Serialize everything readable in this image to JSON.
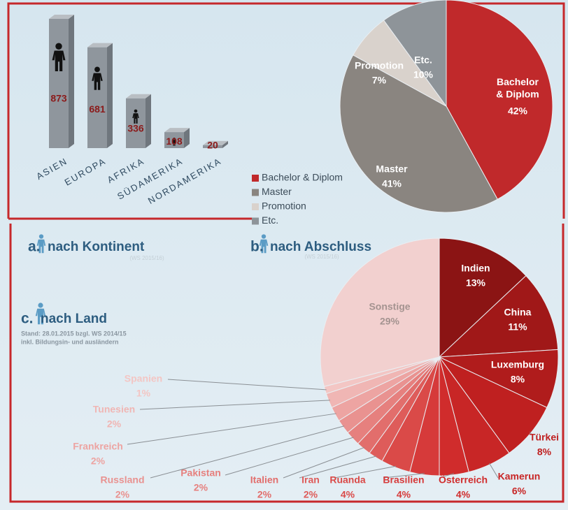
{
  "chart_data": [
    {
      "type": "bar",
      "panel": "a.",
      "title": "nach Kontinent",
      "subtitle": "(WS 2015/16)",
      "categories": [
        "ASIEN",
        "EUROPA",
        "AFRIKA",
        "SÜDAMERIKA",
        "NORDAMERIKA"
      ],
      "values": [
        873,
        681,
        336,
        108,
        20
      ],
      "color": "#8f969d"
    },
    {
      "type": "pie",
      "panel": "b.",
      "title": "nach Abschluss",
      "subtitle": "(WS 2015/16)",
      "categories": [
        "Bachelor & Diplom",
        "Master",
        "Promotion",
        "Etc."
      ],
      "values": [
        42,
        41,
        7,
        10
      ],
      "value_labels": [
        "42%",
        "41%",
        "7%",
        "10%"
      ],
      "colors": [
        "#c0292b",
        "#8a8580",
        "#d9d2cc",
        "#8e9499"
      ],
      "legend": "left"
    },
    {
      "type": "pie",
      "panel": "c.",
      "title": "nach Land",
      "notes": [
        "Stand: 28.01.2015 bzgl. WS 2014/15",
        "inkl. Bildungsin- und ausländern"
      ],
      "categories": [
        "Indien",
        "China",
        "Luxemburg",
        "Türkei",
        "Kamerun",
        "Österreich",
        "Brasilien",
        "Ruanda",
        "Iran",
        "Italien",
        "Pakistan",
        "Russland",
        "Frankreich",
        "Tunesien",
        "Spanien",
        "Sonstige"
      ],
      "values": [
        13,
        11,
        8,
        8,
        6,
        4,
        4,
        4,
        2,
        2,
        2,
        2,
        2,
        2,
        1,
        29
      ],
      "value_labels": [
        "13%",
        "11%",
        "8%",
        "8%",
        "6%",
        "4%",
        "4%",
        "4%",
        "2%",
        "2%",
        "2%",
        "2%",
        "2%",
        "2%",
        "1%",
        "29%"
      ],
      "colors": [
        "#8b1414",
        "#a01818",
        "#b01c1c",
        "#bf2020",
        "#c82626",
        "#d02c2c",
        "#d63a3a",
        "#da4a48",
        "#de5c5a",
        "#e26e6c",
        "#e6807e",
        "#e99290",
        "#eda4a2",
        "#f0b6b4",
        "#f3c6c4",
        "#f2d0cf"
      ]
    }
  ]
}
